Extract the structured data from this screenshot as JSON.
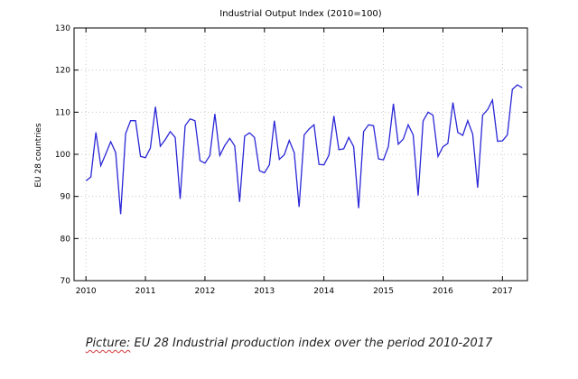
{
  "chart_data": {
    "type": "line",
    "title": "Industrial Output Index (2010=100)",
    "xlabel": "",
    "ylabel": "EU 28 countries",
    "ylim": [
      70,
      130
    ],
    "y_ticks": [
      70,
      80,
      90,
      100,
      110,
      120,
      130
    ],
    "xlim": [
      2009.8,
      2017.42
    ],
    "x_ticks": [
      2010,
      2011,
      2012,
      2013,
      2014,
      2015,
      2016,
      2017
    ],
    "x_tick_labels": [
      "2010",
      "2011",
      "2012",
      "2013",
      "2014",
      "2015",
      "2016",
      "2017"
    ],
    "grid": true,
    "legend": "none",
    "series_color": "#2a27d6",
    "series": [
      {
        "x": [
          2010.0,
          2010.083,
          2010.167,
          2010.25,
          2010.333,
          2010.417,
          2010.5,
          2010.583,
          2010.667,
          2010.75,
          2010.833,
          2010.917,
          2011.0,
          2011.083,
          2011.167,
          2011.25,
          2011.333,
          2011.417,
          2011.5,
          2011.583,
          2011.667,
          2011.75,
          2011.833,
          2011.917,
          2012.0,
          2012.083,
          2012.167,
          2012.25,
          2012.333,
          2012.417,
          2012.5,
          2012.583,
          2012.667,
          2012.75,
          2012.833,
          2012.917,
          2013.0,
          2013.083,
          2013.167,
          2013.25,
          2013.333,
          2013.417,
          2013.5,
          2013.583,
          2013.667,
          2013.75,
          2013.833,
          2013.917,
          2014.0,
          2014.083,
          2014.167,
          2014.25,
          2014.333,
          2014.417,
          2014.5,
          2014.583,
          2014.667,
          2014.75,
          2014.833,
          2014.917,
          2015.0,
          2015.083,
          2015.167,
          2015.25,
          2015.333,
          2015.417,
          2015.5,
          2015.583,
          2015.667,
          2015.75,
          2015.833,
          2015.917,
          2016.0,
          2016.083,
          2016.167,
          2016.25,
          2016.333,
          2016.417,
          2016.5,
          2016.583,
          2016.667,
          2016.75,
          2016.833,
          2016.917,
          2017.0,
          2017.083,
          2017.167,
          2017.25,
          2017.333
        ],
        "y": [
          93.7,
          94.6,
          105.2,
          97.3,
          100.1,
          103.0,
          100.4,
          85.8,
          104.9,
          108.0,
          108.0,
          99.5,
          99.2,
          101.5,
          111.3,
          101.9,
          103.5,
          105.4,
          104.0,
          89.4,
          106.8,
          108.4,
          108.0,
          98.5,
          97.9,
          99.7,
          109.6,
          99.7,
          102.1,
          103.8,
          102.0,
          88.7,
          104.3,
          105.1,
          104.0,
          96.1,
          95.6,
          97.5,
          108.0,
          98.8,
          99.9,
          103.3,
          100.4,
          87.5,
          104.6,
          106.0,
          107.0,
          97.6,
          97.5,
          99.8,
          109.1,
          101.1,
          101.3,
          104.0,
          101.8,
          87.2,
          105.4,
          107.0,
          106.8,
          98.9,
          98.7,
          101.8,
          112.0,
          102.4,
          103.6,
          107.0,
          104.6,
          90.2,
          107.9,
          110.0,
          109.3,
          99.5,
          101.8,
          102.6,
          112.3,
          105.2,
          104.5,
          108.0,
          104.8,
          92.1,
          109.3,
          110.6,
          112.9,
          103.1,
          103.2,
          104.6,
          115.4,
          116.5,
          115.8
        ]
      }
    ]
  },
  "caption": {
    "prefix": "Picture:",
    "text": "EU 28 Industrial production index over the period 2010-2017"
  }
}
